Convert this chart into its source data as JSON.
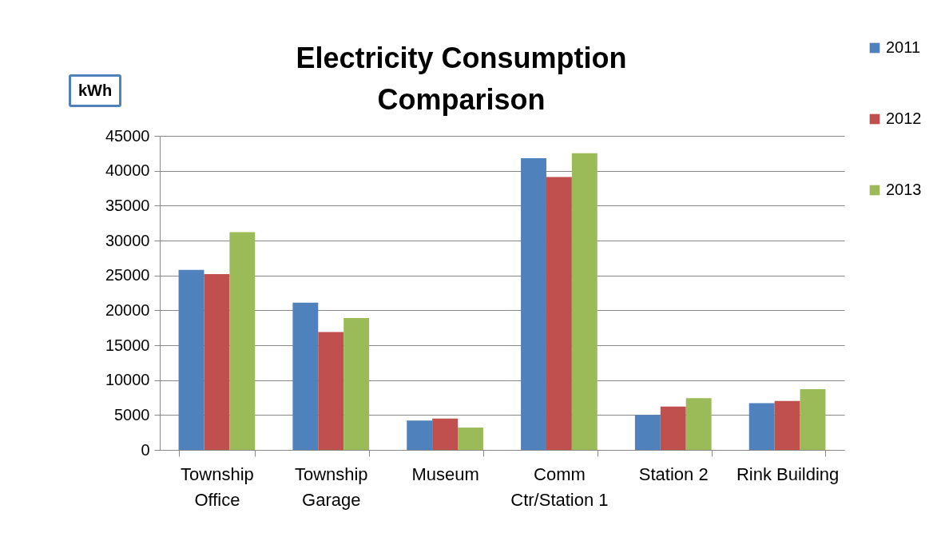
{
  "chart_data": {
    "type": "bar",
    "title": "Electricity Consumption Comparison",
    "ylabel": "kWh",
    "categories": [
      "Township Office",
      "Township Garage",
      "Museum",
      "Comm Ctr/Station 1",
      "Station 2",
      "Rink Building"
    ],
    "series": [
      {
        "name": "2011",
        "color": "#4f81bd",
        "values": [
          25800,
          21100,
          4200,
          41800,
          5000,
          6700
        ]
      },
      {
        "name": "2012",
        "color": "#c0504d",
        "values": [
          25200,
          16900,
          4500,
          39100,
          6200,
          7000
        ]
      },
      {
        "name": "2013",
        "color": "#9bbb59",
        "values": [
          31200,
          18900,
          3200,
          42500,
          7400,
          8700
        ]
      }
    ],
    "ylim": [
      0,
      45000
    ],
    "yticks": [
      0,
      5000,
      10000,
      15000,
      20000,
      25000,
      30000,
      35000,
      40000,
      45000
    ],
    "grid": "y",
    "legend": "top right"
  }
}
